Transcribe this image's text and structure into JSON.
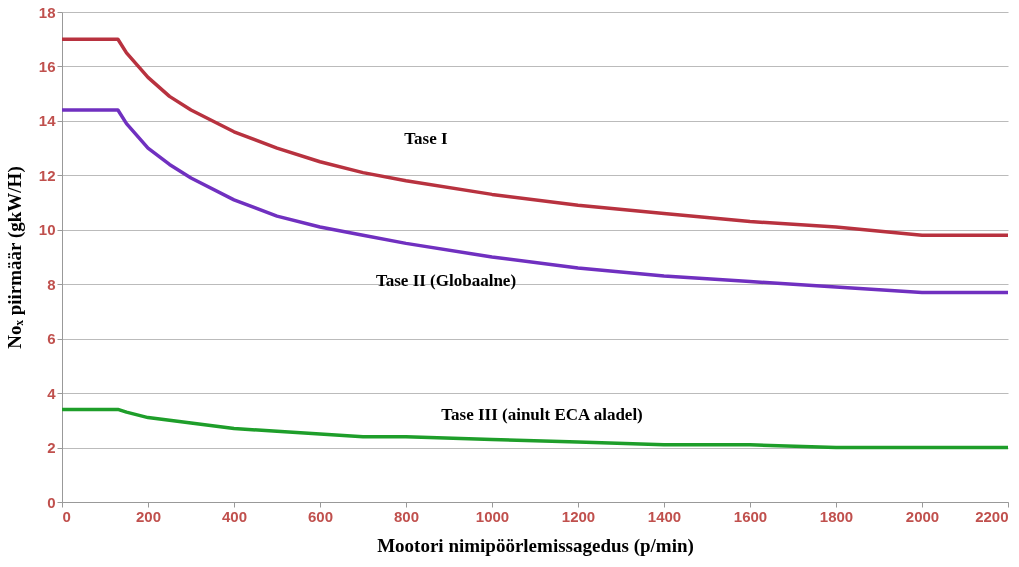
{
  "chart_data": {
    "type": "line",
    "xlabel": "Mootori nimipöörlemissagedus (p/min)",
    "ylabel": "Noₓ piirmäär (gkW/H)",
    "xlim": [
      0,
      2200
    ],
    "xticks": [
      0,
      200,
      400,
      600,
      800,
      1000,
      1200,
      1400,
      1600,
      1800,
      2000,
      2200
    ],
    "ylim": [
      0,
      18
    ],
    "yticks": [
      0,
      2,
      4,
      6,
      8,
      10,
      12,
      14,
      16,
      18
    ],
    "grid": "y",
    "legend": false,
    "line_style": "solid",
    "marker": "none",
    "x": [
      0,
      130,
      150,
      200,
      250,
      300,
      400,
      500,
      600,
      700,
      800,
      1000,
      1200,
      1400,
      1600,
      1800,
      2000,
      2200
    ],
    "series": [
      {
        "name": "Tase I",
        "color": "#b8323f",
        "values": [
          17.0,
          17.0,
          16.5,
          15.6,
          14.9,
          14.4,
          13.6,
          13.0,
          12.5,
          12.1,
          11.8,
          11.3,
          10.9,
          10.6,
          10.3,
          10.1,
          9.8,
          9.8
        ]
      },
      {
        "name": "Tase II (Globaalne)",
        "color": "#7030c0",
        "values": [
          14.4,
          14.4,
          13.9,
          13.0,
          12.4,
          11.9,
          11.1,
          10.5,
          10.1,
          9.8,
          9.5,
          9.0,
          8.6,
          8.3,
          8.1,
          7.9,
          7.7,
          7.7
        ]
      },
      {
        "name": "Tase III (ainult ECA aladel)",
        "color": "#1e9e2a",
        "values": [
          3.4,
          3.4,
          3.3,
          3.1,
          3.0,
          2.9,
          2.7,
          2.6,
          2.5,
          2.4,
          2.4,
          2.3,
          2.2,
          2.1,
          2.1,
          2.0,
          2.0,
          2.0
        ]
      }
    ]
  }
}
